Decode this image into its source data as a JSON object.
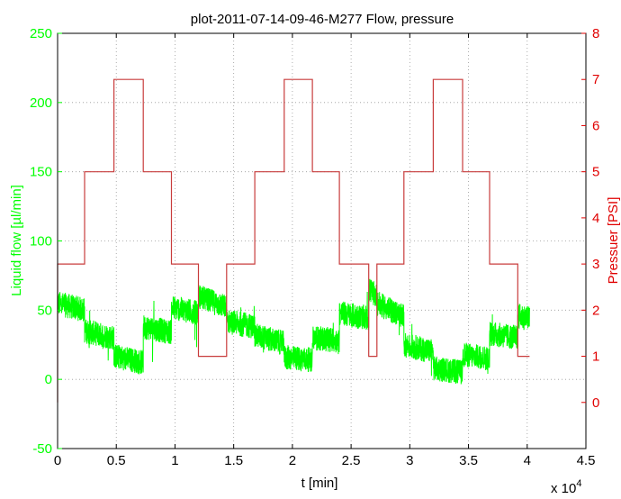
{
  "chart_data": {
    "type": "line",
    "title": "plot-2011-07-14-09-46-M277 Flow, pressure",
    "xlabel": "t [min]",
    "x_multiplier_label": "x 10",
    "x_multiplier_exponent": "4",
    "ylabel_left": "Liquid flow  [µl/min]",
    "ylabel_right": "Pressuer [PSI]",
    "xlim": [
      0,
      4.5
    ],
    "ylim_left": [
      -50,
      250
    ],
    "ylim_right": [
      -1,
      8
    ],
    "grid": true,
    "x_ticks": [
      "0",
      "0.5",
      "1",
      "1.5",
      "2",
      "2.5",
      "3",
      "3.5",
      "4",
      "4.5"
    ],
    "y_left_ticks": [
      "-50",
      "0",
      "50",
      "100",
      "150",
      "200",
      "250"
    ],
    "y_right_ticks": [
      "0",
      "1",
      "2",
      "3",
      "4",
      "5",
      "6",
      "7",
      "8"
    ],
    "series": [
      {
        "axis": "right",
        "color": "#c83c3c",
        "step_x": [
          0,
          0.23,
          0.48,
          0.73,
          0.97,
          1.2,
          1.44,
          1.68,
          1.93,
          2.17,
          2.4,
          2.65,
          2.72,
          2.95,
          3.2,
          3.45,
          3.68,
          3.92,
          4.02
        ],
        "step_y": [
          3,
          5,
          7,
          5,
          3,
          1,
          3,
          5,
          7,
          5,
          3,
          1,
          3,
          5,
          7,
          5,
          3,
          1
        ]
      },
      {
        "axis": "left",
        "color": "#00ff00",
        "segment_x": [
          0,
          0.23,
          0.48,
          0.73,
          0.97,
          1.2,
          1.44,
          1.68,
          1.93,
          2.17,
          2.4,
          2.65,
          2.72,
          2.95,
          3.2,
          3.45,
          3.68,
          3.92,
          4.02
        ],
        "segment_start_mean": [
          55,
          35,
          17,
          38,
          52,
          60,
          42,
          32,
          16,
          30,
          48,
          65,
          55,
          25,
          8,
          18,
          33,
          46
        ],
        "segment_end_mean": [
          50,
          30,
          12,
          34,
          48,
          52,
          38,
          26,
          14,
          28,
          44,
          60,
          45,
          20,
          5,
          15,
          30,
          44
        ],
        "noise_amplitude": 9,
        "spike_count": 30
      }
    ]
  }
}
